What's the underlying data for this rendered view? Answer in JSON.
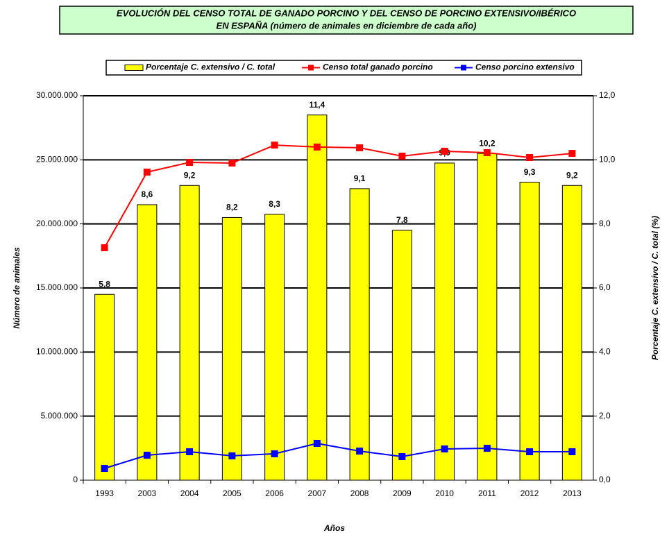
{
  "chart_data": {
    "type": "bar",
    "title": [
      "EVOLUCIÓN DEL CENSO TOTAL DE GANADO PORCINO Y DEL CENSO DE PORCINO EXTENSIVO/IBÉRICO",
      "EN ESPAÑA (número de animales en diciembre de cada año)"
    ],
    "x_label": "Años",
    "y_label": "Número de animales",
    "y2_label": "Porcentaje C. extensivo / C. total (%)",
    "categories": [
      "1993",
      "2003",
      "2004",
      "2005",
      "2006",
      "2007",
      "2008",
      "2009",
      "2010",
      "2011",
      "2012",
      "2013"
    ],
    "series": [
      {
        "name": "Porcentaje C. extensivo / C. total",
        "type": "bar",
        "axis": "y2",
        "color": "#ffff00",
        "values": [
          5.8,
          8.6,
          9.2,
          8.2,
          8.3,
          11.4,
          9.1,
          7.8,
          9.9,
          10.2,
          9.3,
          9.2
        ],
        "value_labels": [
          "5,8",
          "8,6",
          "9,2",
          "8,2",
          "8,3",
          "11,4",
          "9,1",
          "7,8",
          "9,9",
          "10,2",
          "9,3",
          "9,2"
        ]
      },
      {
        "name": "Censo total ganado porcino",
        "type": "line",
        "color": "#ff0000",
        "values": [
          18140000,
          24040000,
          24800000,
          24750000,
          26150000,
          26000000,
          25940000,
          25290000,
          25670000,
          25560000,
          25180000,
          25500000
        ]
      },
      {
        "name": "Censo porcino extensivo",
        "type": "line",
        "color": "#0000ff",
        "values": [
          920000,
          1950000,
          2220000,
          1900000,
          2060000,
          2870000,
          2270000,
          1840000,
          2440000,
          2490000,
          2220000,
          2220000
        ]
      }
    ],
    "ylim": [
      0,
      30000000
    ],
    "yticks": [
      0,
      {
        "value": 5000000,
        "label": "5.000.000"
      },
      {
        "value": 10000000,
        "label": "10.000.000"
      },
      {
        "value": 15000000,
        "label": "15.000.000"
      },
      {
        "value": 20000000,
        "label": "20.000.000"
      },
      {
        "value": 25000000,
        "label": "25.000.000"
      },
      {
        "value": 30000000,
        "label": "30.000.000"
      }
    ],
    "y2lim": [
      0,
      12
    ],
    "y2ticks": [
      {
        "value": 0,
        "label": "0,0"
      },
      {
        "value": 2,
        "label": "2,0"
      },
      {
        "value": 4,
        "label": "4,0"
      },
      {
        "value": 6,
        "label": "6,0"
      },
      {
        "value": 8,
        "label": "8,0"
      },
      {
        "value": 10,
        "label": "10,0"
      },
      {
        "value": 12,
        "label": "12,0"
      }
    ],
    "grid": true
  }
}
